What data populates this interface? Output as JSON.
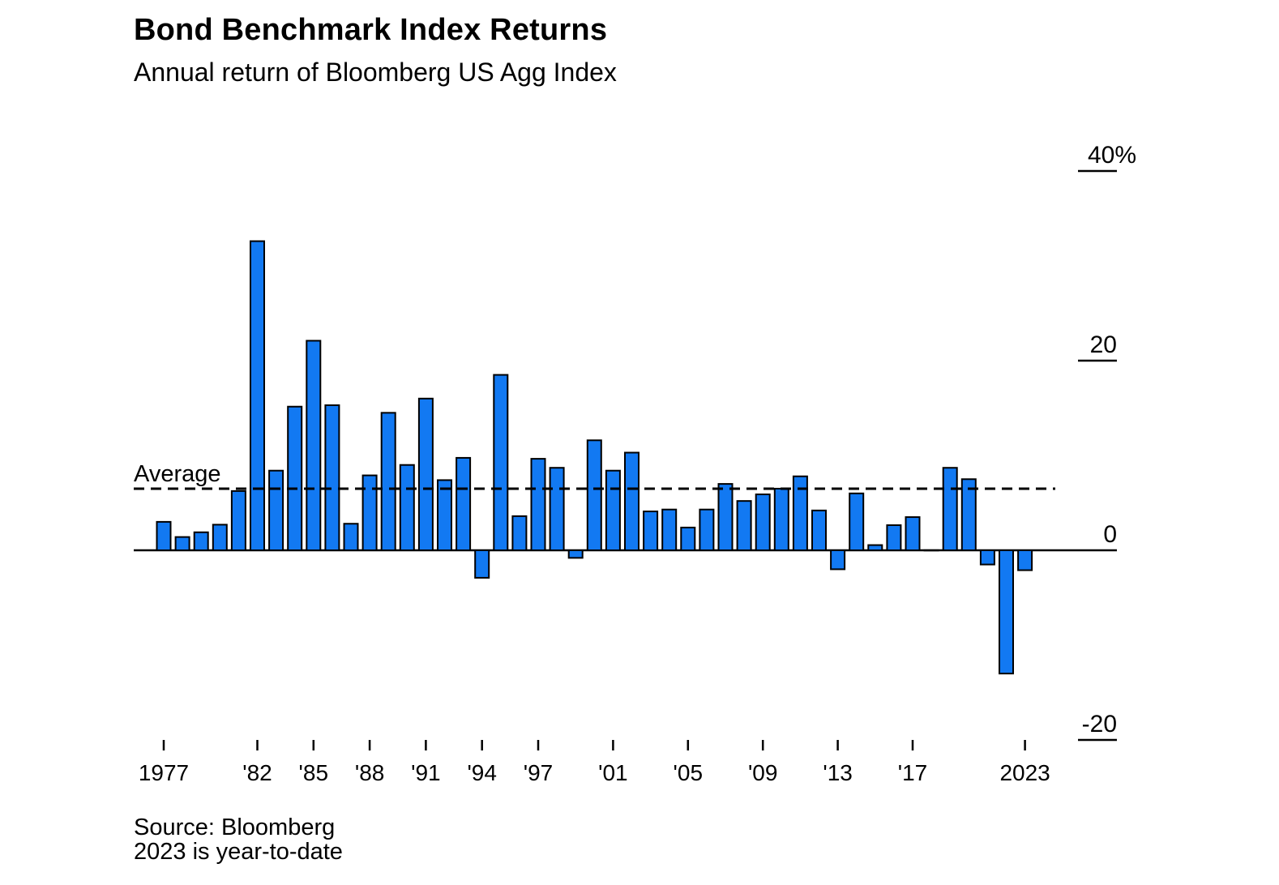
{
  "header": {
    "title": "Bond Benchmark Index Returns",
    "subtitle": "Annual return of Bloomberg US Agg Index"
  },
  "footer": {
    "source": "Source: Bloomberg",
    "note": "2023 is year-to-date"
  },
  "chart_data": {
    "type": "bar",
    "title": "Bond Benchmark Index Returns",
    "subtitle": "Annual return of Bloomberg US Agg Index",
    "unit": "percent",
    "ylim": [
      -20,
      40
    ],
    "grid": false,
    "legend_position": "none",
    "bar_color": "#1279f2",
    "bar_outline": "#000000",
    "average_line": {
      "label": "Average",
      "value": 6.5,
      "style": "dashed"
    },
    "x": [
      1977,
      1978,
      1979,
      1980,
      1981,
      1982,
      1983,
      1984,
      1985,
      1986,
      1987,
      1988,
      1989,
      1990,
      1991,
      1992,
      1993,
      1994,
      1995,
      1996,
      1997,
      1998,
      1999,
      2000,
      2001,
      2002,
      2003,
      2004,
      2005,
      2006,
      2007,
      2008,
      2009,
      2010,
      2011,
      2012,
      2013,
      2014,
      2015,
      2016,
      2017,
      2018,
      2019,
      2020,
      2021,
      2022,
      2023
    ],
    "values": [
      3.0,
      1.4,
      1.9,
      2.7,
      6.25,
      32.6,
      8.4,
      15.15,
      22.1,
      15.3,
      2.8,
      7.9,
      14.5,
      9.0,
      16.0,
      7.4,
      9.75,
      -2.9,
      18.5,
      3.6,
      9.65,
      8.7,
      -0.8,
      11.6,
      8.4,
      10.3,
      4.1,
      4.3,
      2.4,
      4.3,
      7.0,
      5.2,
      5.9,
      6.5,
      7.8,
      4.2,
      -2.0,
      6.0,
      0.55,
      2.65,
      3.5,
      0.01,
      8.7,
      7.5,
      -1.5,
      -13.0,
      -2.1
    ],
    "x_ticks": [
      {
        "x": 1977,
        "label": "1977"
      },
      {
        "x": 1982,
        "label": "'82"
      },
      {
        "x": 1985,
        "label": "'85"
      },
      {
        "x": 1988,
        "label": "'88"
      },
      {
        "x": 1991,
        "label": "'91"
      },
      {
        "x": 1994,
        "label": "'94"
      },
      {
        "x": 1997,
        "label": "'97"
      },
      {
        "x": 2001,
        "label": "'01"
      },
      {
        "x": 2005,
        "label": "'05"
      },
      {
        "x": 2009,
        "label": "'09"
      },
      {
        "x": 2013,
        "label": "'13"
      },
      {
        "x": 2017,
        "label": "'17"
      },
      {
        "x": 2023,
        "label": "2023"
      }
    ],
    "y_ticks": [
      {
        "value": 40,
        "label": "40%"
      },
      {
        "value": 20,
        "label": "20"
      },
      {
        "value": 0,
        "label": "0"
      },
      {
        "value": -20,
        "label": "-20"
      }
    ]
  }
}
